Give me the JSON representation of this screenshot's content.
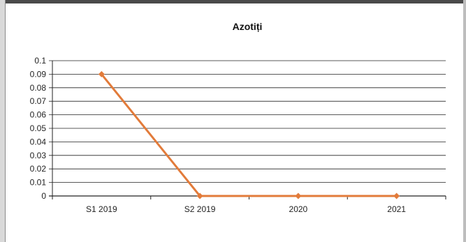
{
  "chart_data": {
    "type": "line",
    "title": "Azotiți",
    "categories": [
      "S1 2019",
      "S2 2019",
      "2020",
      "2021"
    ],
    "series": [
      {
        "values": [
          0.09,
          0,
          0,
          0
        ],
        "color": "#e27b3a"
      }
    ],
    "yticks": [
      "0",
      "0.01",
      "0.02",
      "0.03",
      "0.04",
      "0.05",
      "0.06",
      "0.07",
      "0.08",
      "0.09",
      "0.1"
    ],
    "ylim": [
      0,
      0.1
    ],
    "grid": true,
    "legend": "none",
    "gridline_color": "#222222"
  }
}
